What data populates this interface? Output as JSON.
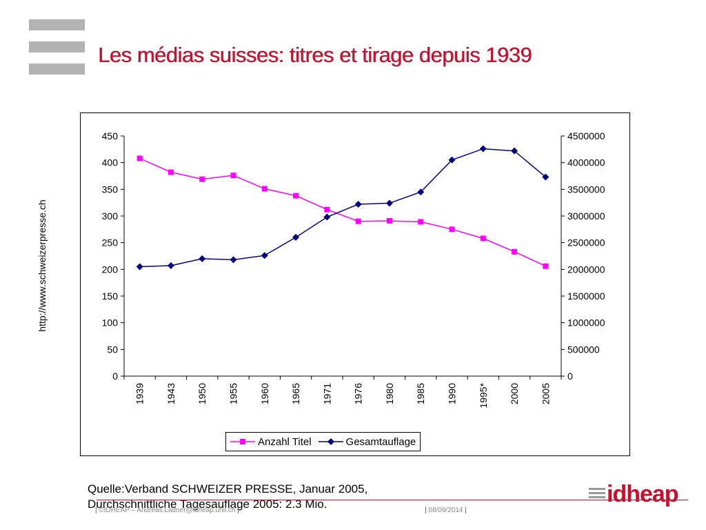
{
  "slide": {
    "title": "Les médias suisses: titres et tirage depuis 1939",
    "side_url": "http://www.schweizerpresse.ch",
    "source_line1": "Quelle:Verband SCHWEIZER PRESSE, Januar 2005,",
    "source_line2": "Durchschnittliche Tagesauflage 2005: 2.3 Mio.",
    "footer_left": "©IDHEAP – Andreas.Ladner@idheap.unil.ch",
    "footer_date": "08/09/2014",
    "brand": "idheap",
    "colors": {
      "title": "#c8102e",
      "titel_series": "#ff00ff",
      "auflage_series": "#000080"
    }
  },
  "chart_data": {
    "type": "line",
    "categories": [
      "1939",
      "1943",
      "1950",
      "1955",
      "1960",
      "1965",
      "1971",
      "1976",
      "1980",
      "1985",
      "1990",
      "1995*",
      "2000",
      "2005"
    ],
    "series": [
      {
        "name": "Anzahl Titel",
        "axis": "left",
        "marker": "square",
        "color": "#ff00ff",
        "values": [
          408,
          382,
          369,
          376,
          351,
          338,
          312,
          290,
          291,
          289,
          275,
          258,
          233,
          206
        ]
      },
      {
        "name": "Gesamtauflage",
        "axis": "right",
        "marker": "diamond",
        "color": "#000080",
        "values": [
          2050000,
          2070000,
          2200000,
          2180000,
          2260000,
          2600000,
          2980000,
          3220000,
          3240000,
          3450000,
          4050000,
          4260000,
          4220000,
          3730000
        ]
      }
    ],
    "y_left": {
      "min": 0,
      "max": 450,
      "ticks": [
        "0",
        "50",
        "100",
        "150",
        "200",
        "250",
        "300",
        "350",
        "400",
        "450"
      ]
    },
    "y_right": {
      "min": 0,
      "max": 4500000,
      "ticks": [
        "0",
        "500000",
        "1000000",
        "1500000",
        "2000000",
        "2500000",
        "3000000",
        "3500000",
        "4000000",
        "4500000"
      ]
    },
    "grid": false,
    "legend_position": "bottom"
  }
}
